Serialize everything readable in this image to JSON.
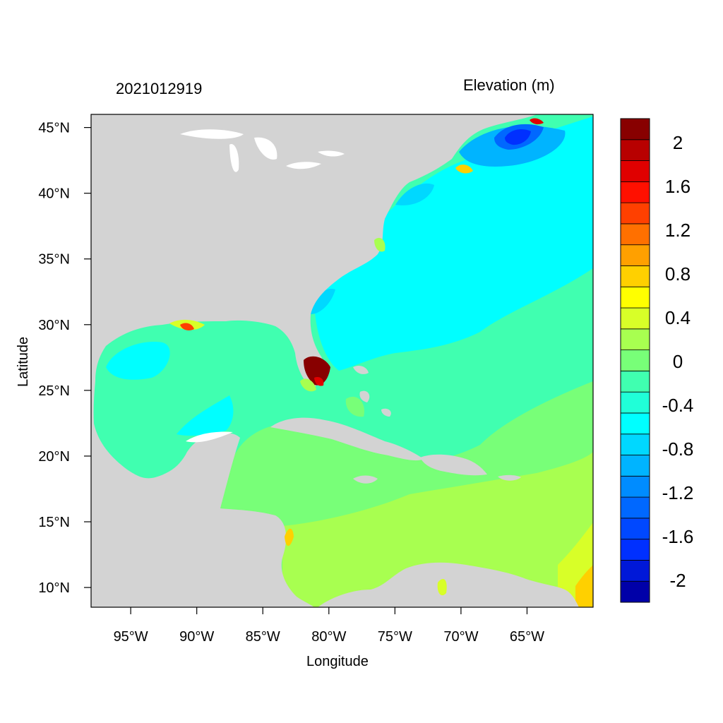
{
  "map": {
    "left_title": "2021012919",
    "right_title": "Elevation (m)",
    "xlabel": "Longitude",
    "ylabel": "Latitude",
    "lon_range": [
      -98,
      -60
    ],
    "lat_range": [
      8.5,
      46
    ],
    "x_ticks": [
      {
        "value": -95,
        "label": "95°W"
      },
      {
        "value": -90,
        "label": "90°W"
      },
      {
        "value": -85,
        "label": "85°W"
      },
      {
        "value": -80,
        "label": "80°W"
      },
      {
        "value": -75,
        "label": "75°W"
      },
      {
        "value": -70,
        "label": "70°W"
      },
      {
        "value": -65,
        "label": "65°W"
      }
    ],
    "y_ticks": [
      {
        "value": 10,
        "label": "10°N"
      },
      {
        "value": 15,
        "label": "15°N"
      },
      {
        "value": 20,
        "label": "20°N"
      },
      {
        "value": 25,
        "label": "25°N"
      },
      {
        "value": 30,
        "label": "30°N"
      },
      {
        "value": 35,
        "label": "35°N"
      },
      {
        "value": 40,
        "label": "40°N"
      },
      {
        "value": 45,
        "label": "45°N"
      }
    ],
    "land_color": "#d3d3d3"
  },
  "colorbar": {
    "colors": [
      "#0000a8",
      "#0018d8",
      "#0030ff",
      "#0048ff",
      "#0068ff",
      "#008cff",
      "#00b4ff",
      "#00d8ff",
      "#00ffff",
      "#20ffd8",
      "#40ffb0",
      "#78ff78",
      "#a8ff50",
      "#d8ff28",
      "#ffff00",
      "#ffd000",
      "#ffa000",
      "#ff7000",
      "#ff4000",
      "#ff1000",
      "#e00000",
      "#b80000",
      "#880000"
    ],
    "tick_labels": [
      "2",
      "1.6",
      "1.2",
      "0.8",
      "0.4",
      "0",
      "-0.4",
      "-0.8",
      "-1.2",
      "-1.6",
      "-2"
    ]
  }
}
